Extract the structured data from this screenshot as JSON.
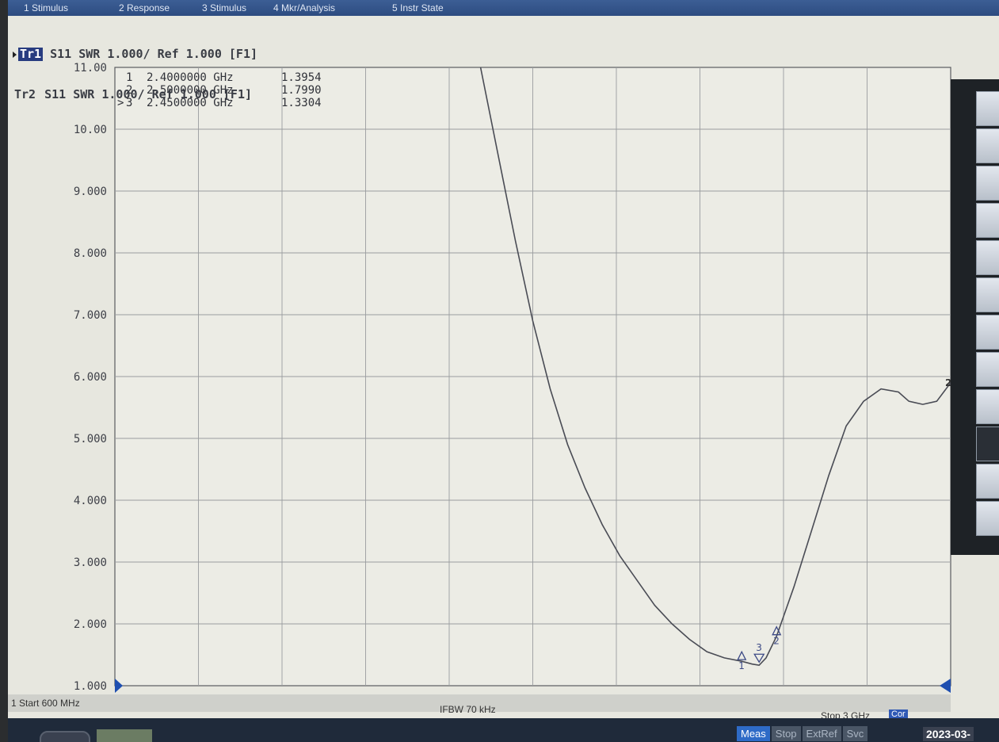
{
  "menu": {
    "items": [
      "1 Stimulus",
      "2 Response",
      "3 Stimulus",
      "4 Mkr/Analysis",
      "5 Instr State"
    ]
  },
  "traces": [
    {
      "label": "Tr1",
      "param": "S11",
      "format": "SWR",
      "scale": "1.000/",
      "ref": "Ref 1.000",
      "tag": "[F1]",
      "active": true
    },
    {
      "label": "Tr2",
      "param": "S11",
      "format": "SWR",
      "scale": "1.000/",
      "ref": "Ref 1.000",
      "tag": "[F1]",
      "active": false
    }
  ],
  "markers": [
    {
      "id": "1",
      "prefix": "",
      "freq": "2.4000000 GHz",
      "value": "1.3954"
    },
    {
      "id": "2",
      "prefix": "",
      "freq": "2.5000000 GHz",
      "value": "1.7990"
    },
    {
      "id": "3",
      "prefix": ">",
      "freq": "2.4500000 GHz",
      "value": "1.3304"
    }
  ],
  "y_axis": {
    "ticks": [
      "11.00",
      "10.00",
      "9.000",
      "8.000",
      "7.000",
      "6.000",
      "5.000",
      "4.000",
      "3.000",
      "2.000",
      "1.000"
    ]
  },
  "status": {
    "start": "1 Start 600 MHz",
    "ifbw": "IFBW 70 kHz",
    "stop": "Stop 3 GHz",
    "cor": "Cor"
  },
  "bottom": {
    "buttons": [
      "Meas",
      "Stop",
      "ExtRef",
      "Svc"
    ],
    "date": "2023-03-"
  },
  "colors": {
    "screen_bg": "#e7e7df",
    "trace": "#4a4c55",
    "marker": "#3d4a86",
    "active_marker": "#1f4fb0"
  },
  "chart_data": {
    "type": "line",
    "ylim": [
      1,
      11
    ],
    "xlim_ghz": [
      0.6,
      3.0
    ],
    "grid": true,
    "series": [
      {
        "name": "Tr1 S11 SWR",
        "x": [
          1.65,
          1.7,
          1.75,
          1.8,
          1.85,
          1.9,
          1.95,
          2.0,
          2.05,
          2.1,
          2.15,
          2.2,
          2.25,
          2.3,
          2.35,
          2.4,
          2.43,
          2.45,
          2.47,
          2.5,
          2.55,
          2.6,
          2.65,
          2.7,
          2.75,
          2.8,
          2.85,
          2.88,
          2.92,
          2.96,
          2.98,
          3.0
        ],
        "y": [
          11.0,
          9.6,
          8.2,
          6.9,
          5.8,
          4.9,
          4.2,
          3.6,
          3.1,
          2.7,
          2.3,
          2.0,
          1.75,
          1.55,
          1.45,
          1.3954,
          1.35,
          1.3304,
          1.45,
          1.799,
          2.6,
          3.5,
          4.4,
          5.2,
          5.6,
          5.8,
          5.75,
          5.6,
          5.55,
          5.6,
          5.75,
          5.9
        ]
      }
    ]
  }
}
